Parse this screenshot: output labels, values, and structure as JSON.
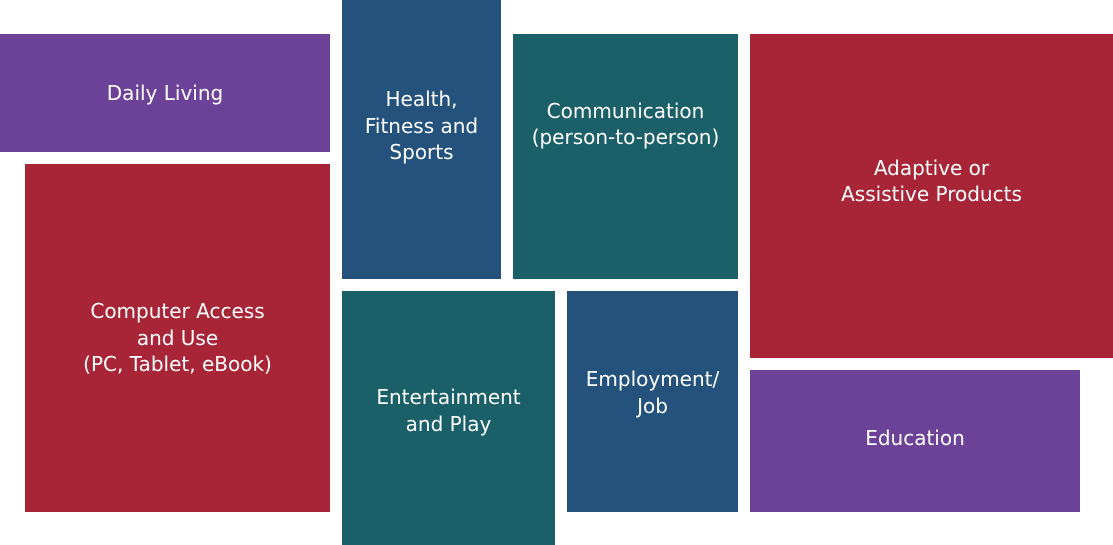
{
  "tiles": {
    "daily_living": {
      "label": "Daily Living",
      "color": "#6c4298"
    },
    "health": {
      "label": "Health,\nFitness and\nSports",
      "color": "#24527c"
    },
    "communication": {
      "label": "Communication\n(person-to-person)",
      "color": "#1b6069"
    },
    "adaptive": {
      "label": "Adaptive or\nAssistive Products",
      "color": "#a72536"
    },
    "computer": {
      "label": "Computer Access\nand Use\n(PC, Tablet, eBook)",
      "color": "#a72536"
    },
    "entertainment": {
      "label": "Entertainment\nand Play",
      "color": "#1b6069"
    },
    "employment": {
      "label": "Employment/\nJob",
      "color": "#24527c"
    },
    "education": {
      "label": "Education",
      "color": "#6c4298"
    }
  }
}
